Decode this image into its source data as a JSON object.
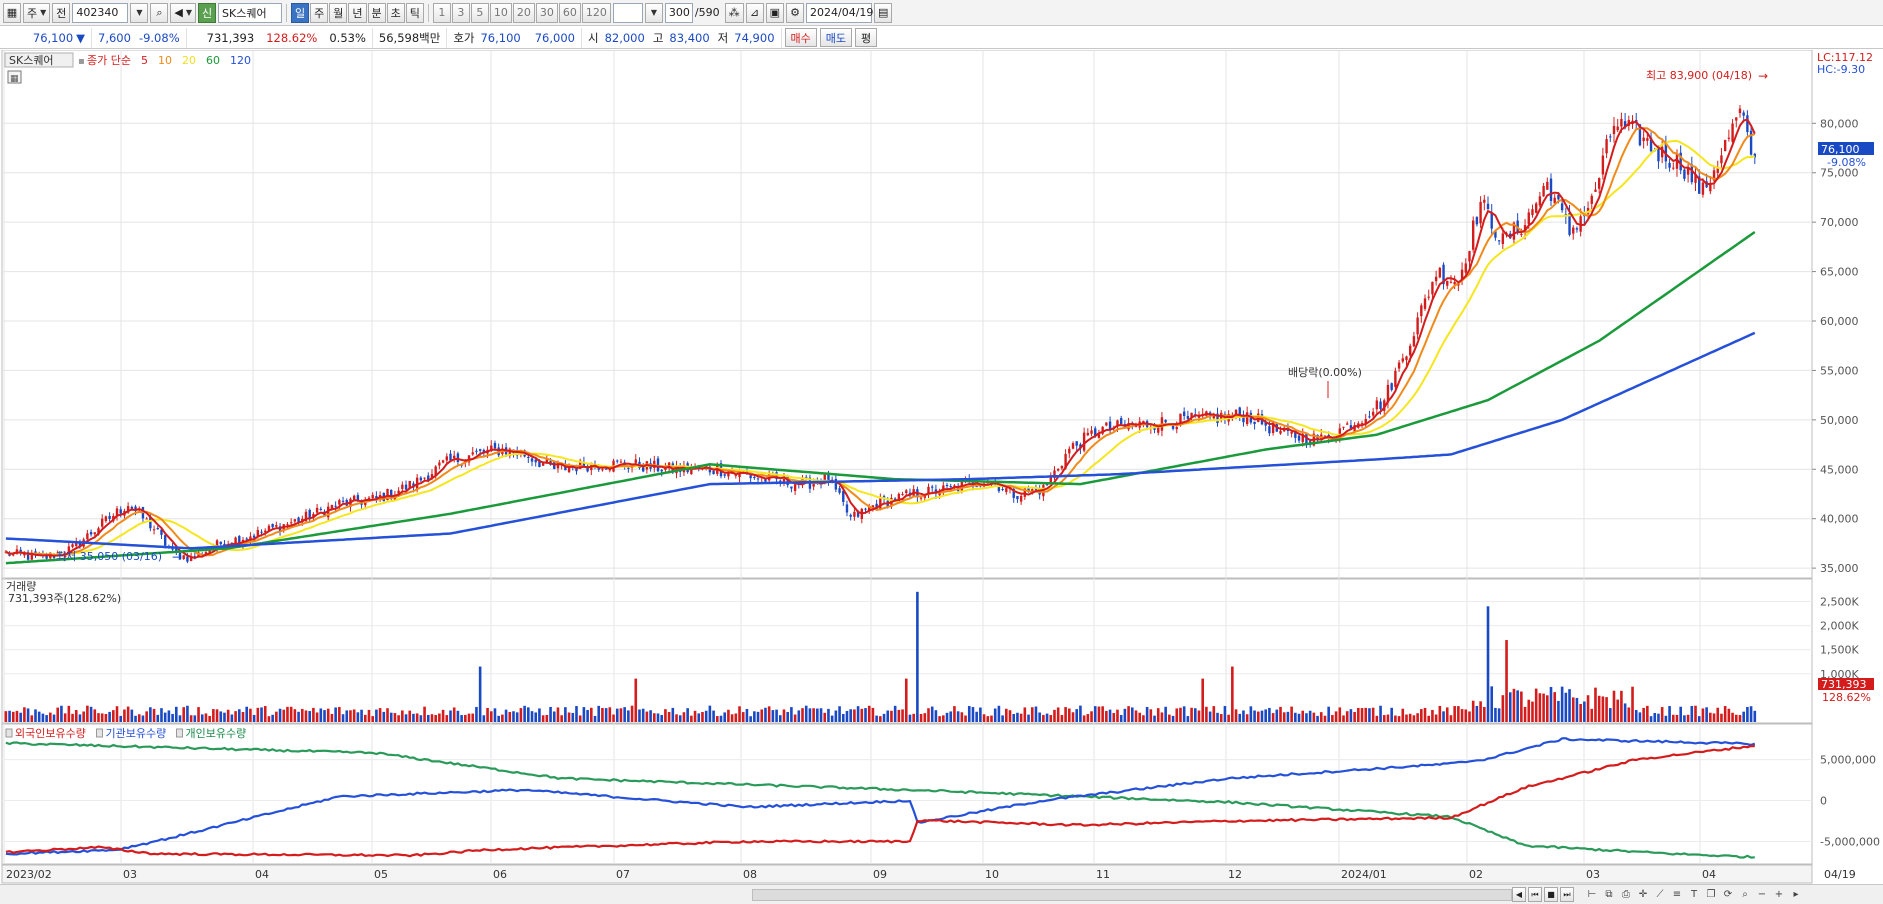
{
  "toolbar": {
    "period_label": "주",
    "jeon_label": "전",
    "code": "402340",
    "name_badge": "신",
    "stock_name": "SK스퀘어",
    "periods": [
      {
        "label": "일",
        "active": true
      },
      {
        "label": "주",
        "active": false
      },
      {
        "label": "월",
        "active": false
      },
      {
        "label": "년",
        "active": false
      },
      {
        "label": "분",
        "active": false
      },
      {
        "label": "초",
        "active": false
      },
      {
        "label": "틱",
        "active": false
      }
    ],
    "intervals": [
      "1",
      "3",
      "5",
      "10",
      "20",
      "30",
      "60",
      "120"
    ],
    "count": "300",
    "total": "/590",
    "date": "2024/04/19"
  },
  "quote": {
    "price": "76,100",
    "change_arrow": "▼",
    "change": "7,600",
    "change_pct": "-9.08%",
    "volume": "731,393",
    "volume_ratio": "128.62%",
    "turnover": "0.53%",
    "amount": "56,598백만",
    "hoga_label": "호가",
    "hoga_bid": "76,100",
    "hoga_ask": "76,000",
    "open_label": "시",
    "open": "82,000",
    "high_label": "고",
    "high": "83,400",
    "low_label": "저",
    "low": "74,900",
    "buy_label": "매수",
    "sell_label": "매도",
    "eval_label": "평"
  },
  "price_pane": {
    "stock_tag": "SK스퀘어",
    "ma_label": "종가 단순",
    "ma_periods": [
      {
        "label": "5",
        "color": "#d41c1c"
      },
      {
        "label": "10",
        "color": "#f08a1a"
      },
      {
        "label": "20",
        "color": "#f0e020"
      },
      {
        "label": "60",
        "color": "#1a9a3a"
      },
      {
        "label": "120",
        "color": "#2550d8"
      }
    ],
    "lc_label": "LC:117.12",
    "hc_label": "HC:-9.30",
    "y_ticks": [
      "80,000",
      "75,000",
      "70,000",
      "65,000",
      "60,000",
      "55,000",
      "50,000",
      "45,000",
      "40,000",
      "35,000"
    ],
    "current_price": "76,100",
    "current_pct": "-9.08%",
    "high_note": "최고 83,900 (04/18)",
    "low_note": "최저 35,050 (03/16)",
    "dividend_note": "배당락(0.00%)"
  },
  "volume_pane": {
    "title": "거래량",
    "value_label": "731,393주(128.62%)",
    "y_ticks": [
      "2,500K",
      "2,000K",
      "1,500K",
      "1,000K"
    ],
    "current_value": "731,393",
    "current_pct": "128.62%"
  },
  "holdings_pane": {
    "legend": [
      {
        "label": "외국인보유수량",
        "color": "#d41c1c"
      },
      {
        "label": "기관보유수량",
        "color": "#2550d8"
      },
      {
        "label": "개인보유수량",
        "color": "#1a8a4a"
      }
    ],
    "y_ticks": [
      "5,000,000",
      "0",
      "-5,000,000"
    ]
  },
  "x_axis": {
    "labels": [
      "2023/02",
      "03",
      "04",
      "05",
      "06",
      "07",
      "08",
      "09",
      "10",
      "11",
      "12",
      "2024/01",
      "02",
      "03",
      "04"
    ],
    "right_label": "04/19"
  },
  "chart_data": {
    "type": "candlestick",
    "price_range": [
      34000,
      86000
    ],
    "price_anchors": [
      [
        0,
        36500
      ],
      [
        10,
        36000
      ],
      [
        18,
        37000
      ],
      [
        26,
        39500
      ],
      [
        33,
        41500
      ],
      [
        40,
        39000
      ],
      [
        45,
        36500
      ],
      [
        50,
        36000
      ],
      [
        58,
        37500
      ],
      [
        68,
        38500
      ],
      [
        80,
        40000
      ],
      [
        90,
        41500
      ],
      [
        100,
        42000
      ],
      [
        110,
        43500
      ],
      [
        118,
        45500
      ],
      [
        126,
        46500
      ],
      [
        134,
        47000
      ],
      [
        140,
        46500
      ],
      [
        148,
        45000
      ],
      [
        158,
        45500
      ],
      [
        168,
        45500
      ],
      [
        180,
        45000
      ],
      [
        192,
        45000
      ],
      [
        205,
        44000
      ],
      [
        215,
        43500
      ],
      [
        222,
        44000
      ],
      [
        228,
        40000
      ],
      [
        235,
        41500
      ],
      [
        245,
        42500
      ],
      [
        255,
        43000
      ],
      [
        265,
        44000
      ],
      [
        272,
        42500
      ],
      [
        280,
        43000
      ],
      [
        287,
        47000
      ],
      [
        295,
        49000
      ],
      [
        305,
        49500
      ],
      [
        320,
        50000
      ],
      [
        335,
        50500
      ],
      [
        345,
        48500
      ],
      [
        355,
        48000
      ],
      [
        365,
        50000
      ],
      [
        372,
        52000
      ],
      [
        380,
        59000
      ],
      [
        386,
        65000
      ],
      [
        392,
        64000
      ],
      [
        398,
        72000
      ],
      [
        404,
        68000
      ],
      [
        410,
        70000
      ],
      [
        416,
        74000
      ],
      [
        422,
        69000
      ],
      [
        428,
        72000
      ],
      [
        434,
        80000
      ],
      [
        440,
        79000
      ],
      [
        446,
        77000
      ],
      [
        452,
        76000
      ],
      [
        458,
        73000
      ],
      [
        463,
        77000
      ],
      [
        468,
        81000
      ],
      [
        472,
        76000
      ]
    ],
    "ma60_anchors": [
      [
        0,
        35500
      ],
      [
        60,
        37000
      ],
      [
        120,
        40500
      ],
      [
        190,
        45500
      ],
      [
        240,
        44000
      ],
      [
        290,
        43500
      ],
      [
        340,
        47000
      ],
      [
        370,
        48500
      ],
      [
        400,
        52000
      ],
      [
        430,
        58000
      ],
      [
        472,
        69000
      ]
    ],
    "ma120_anchors": [
      [
        0,
        38000
      ],
      [
        50,
        37000
      ],
      [
        120,
        38500
      ],
      [
        190,
        43500
      ],
      [
        260,
        44000
      ],
      [
        300,
        44500
      ],
      [
        370,
        46000
      ],
      [
        390,
        46500
      ],
      [
        420,
        50000
      ],
      [
        472,
        58800
      ]
    ],
    "volume_range": [
      0,
      2800000
    ],
    "volume_spikes": [
      [
        246,
        2700000
      ],
      [
        400,
        2400000
      ],
      [
        405,
        1700000
      ],
      [
        128,
        1150000
      ],
      [
        331,
        1150000
      ],
      [
        323,
        900000
      ],
      [
        170,
        900000
      ],
      [
        243,
        900000
      ]
    ],
    "holdings_range": [
      -7500000,
      8000000
    ],
    "foreign_anchors": [
      [
        0,
        -6300000
      ],
      [
        25,
        -5700000
      ],
      [
        40,
        -6500000
      ],
      [
        110,
        -6700000
      ],
      [
        130,
        -6000000
      ],
      [
        200,
        -5000000
      ],
      [
        244,
        -5000000
      ],
      [
        246,
        -2400000
      ],
      [
        290,
        -3000000
      ],
      [
        330,
        -2500000
      ],
      [
        390,
        -2100000
      ],
      [
        410,
        1600000
      ],
      [
        440,
        5000000
      ],
      [
        472,
        6700000
      ]
    ],
    "institution_anchors": [
      [
        0,
        -6500000
      ],
      [
        30,
        -6000000
      ],
      [
        45,
        -4500000
      ],
      [
        90,
        500000
      ],
      [
        140,
        1300000
      ],
      [
        200,
        -800000
      ],
      [
        244,
        0
      ],
      [
        246,
        -2700000
      ],
      [
        280,
        0
      ],
      [
        330,
        2700000
      ],
      [
        390,
        4500000
      ],
      [
        400,
        5100000
      ],
      [
        420,
        7500000
      ],
      [
        472,
        6900000
      ]
    ],
    "individual_anchors": [
      [
        0,
        7000000
      ],
      [
        100,
        5800000
      ],
      [
        150,
        2700000
      ],
      [
        250,
        1200000
      ],
      [
        330,
        -200000
      ],
      [
        390,
        -2000000
      ],
      [
        410,
        -5500000
      ],
      [
        450,
        -6500000
      ],
      [
        472,
        -6900000
      ]
    ],
    "events": [
      {
        "label": "최고 83,900 (04/18)",
        "bar": 470
      },
      {
        "label": "최저 35,050 (03/16)",
        "bar": 45
      },
      {
        "label": "배당락(0.00%)",
        "bar": 350
      }
    ]
  }
}
